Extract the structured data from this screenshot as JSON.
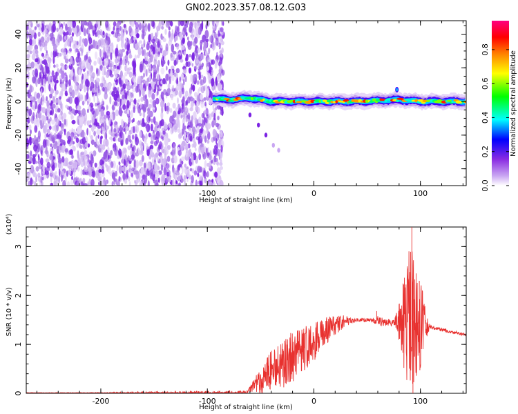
{
  "chart_data": [
    {
      "type": "heatmap",
      "title": "GN02.2023.357.08.12.G03",
      "xlabel": "Height of straight line (km)",
      "ylabel": "Frequency (Hz)",
      "xlim": [
        -270,
        143
      ],
      "ylim": [
        -50,
        48
      ],
      "xticks": [
        -200,
        -100,
        0,
        100
      ],
      "xtick_labels": [
        "-200",
        "-100",
        "0",
        "100"
      ],
      "yticks": [
        -40,
        -20,
        0,
        20,
        40
      ],
      "ytick_labels": [
        "-40",
        "-20",
        "0",
        "20",
        "40"
      ],
      "grid": false,
      "noise_region": {
        "x": [
          -270,
          -85
        ],
        "y": [
          -50,
          48
        ]
      },
      "ridge": [
        {
          "x": -95,
          "y": 2
        },
        {
          "x": -80,
          "y": 1
        },
        {
          "x": -60,
          "y": 2
        },
        {
          "x": -40,
          "y": 0
        },
        {
          "x": -20,
          "y": 0
        },
        {
          "x": 0,
          "y": 0
        },
        {
          "x": 40,
          "y": 0
        },
        {
          "x": 80,
          "y": 1
        },
        {
          "x": 100,
          "y": 0
        },
        {
          "x": 143,
          "y": 0
        }
      ],
      "descending_branch": [
        {
          "x": -60,
          "y": -8
        },
        {
          "x": -52,
          "y": -14
        },
        {
          "x": -45,
          "y": -20
        },
        {
          "x": -38,
          "y": -26
        },
        {
          "x": -33,
          "y": -29
        }
      ],
      "colorbar": {
        "label": "Normalized spectral amplitude",
        "range": [
          0,
          0.97
        ],
        "ticks": [
          0.0,
          0.2,
          0.4,
          0.6,
          0.8
        ],
        "tick_labels": [
          "0.0",
          "0.2",
          "0.4",
          "0.6",
          "0.8"
        ],
        "colormap": [
          "#ffffff",
          "#8a2be2",
          "#0000ff",
          "#00ffff",
          "#00ff00",
          "#ffff00",
          "#ff8000",
          "#ff0000",
          "#ff0080"
        ]
      }
    },
    {
      "type": "line",
      "xlabel": "Height of straight line (km)",
      "ylabel": "SNR (10 * v/v)",
      "scale_label": "(x10⁴)",
      "xlim": [
        -270,
        143
      ],
      "ylim": [
        0,
        3.4
      ],
      "xticks": [
        -200,
        -100,
        0,
        100
      ],
      "xtick_labels": [
        "-200",
        "-100",
        "0",
        "100"
      ],
      "yticks": [
        0,
        1,
        2,
        3
      ],
      "ytick_labels": [
        "0",
        "1",
        "2",
        "3"
      ],
      "grid": false,
      "line_color": "#e8312f",
      "envelope": {
        "x": [
          -270,
          -65,
          -60,
          -50,
          -40,
          -30,
          -20,
          -10,
          0,
          10,
          20,
          30,
          40,
          50,
          60,
          70,
          80,
          85,
          88,
          92,
          96,
          100,
          110,
          120,
          130,
          143
        ],
        "y": [
          0.0,
          0.0,
          0.08,
          0.25,
          0.45,
          0.6,
          0.75,
          0.9,
          1.05,
          1.25,
          1.4,
          1.47,
          1.5,
          1.5,
          1.48,
          1.45,
          1.42,
          1.42,
          1.45,
          1.5,
          1.45,
          1.42,
          1.35,
          1.3,
          1.25,
          1.2
        ]
      },
      "noise_amplitude": {
        "x": [
          -270,
          -60,
          -50,
          -40,
          -30,
          -20,
          -10,
          0,
          10,
          20,
          40,
          55,
          60,
          75,
          80,
          85,
          92,
          100,
          105,
          110,
          143
        ],
        "y": [
          0.0,
          0.06,
          0.28,
          0.45,
          0.5,
          0.55,
          0.5,
          0.42,
          0.3,
          0.2,
          0.04,
          0.04,
          0.1,
          0.06,
          0.4,
          1.0,
          1.8,
          1.1,
          0.3,
          0.04,
          0.03
        ]
      },
      "peaks": [
        {
          "x": 59,
          "y": 1.68
        },
        {
          "x": 88,
          "y": 2.55
        },
        {
          "x": 92,
          "y": 3.4
        },
        {
          "x": 93,
          "y": 0.0
        },
        {
          "x": 96,
          "y": 2.45
        },
        {
          "x": 99,
          "y": 2.3
        }
      ]
    }
  ]
}
